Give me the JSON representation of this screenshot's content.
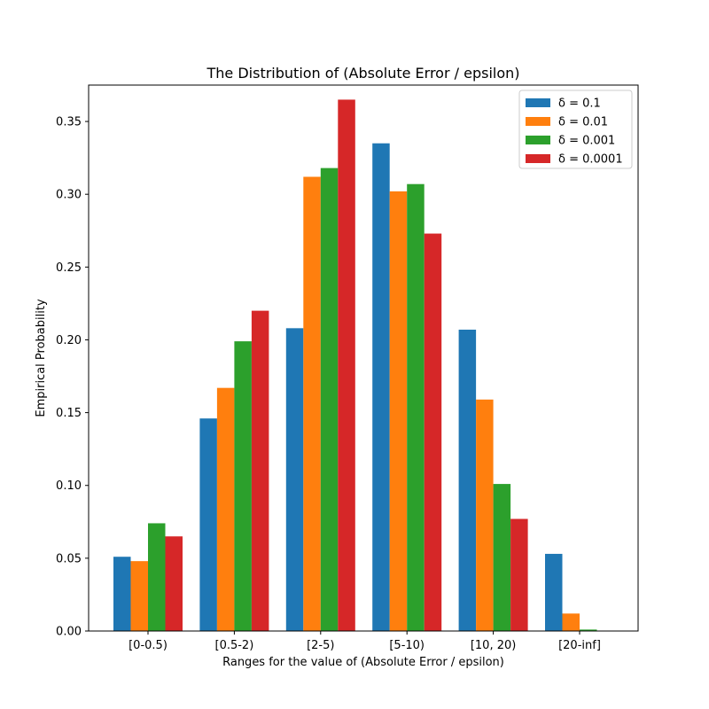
{
  "chart_data": {
    "type": "bar",
    "title": "The Distribution of (Absolute Error / epsilon)",
    "xlabel": "Ranges for the value of (Absolute Error / epsilon)",
    "ylabel": "Empirical Probability",
    "ylim": [
      0,
      0.375
    ],
    "yticks": [
      "0.00",
      "0.05",
      "0.10",
      "0.15",
      "0.20",
      "0.25",
      "0.30",
      "0.35"
    ],
    "ytick_values": [
      0,
      0.05,
      0.1,
      0.15,
      0.2,
      0.25,
      0.3,
      0.35
    ],
    "categories": [
      "[0-0.5)",
      "[0.5-2)",
      "[2-5)",
      "[5-10)",
      "[10, 20)",
      "[20-inf]"
    ],
    "legend_position": "top-right",
    "grid": false,
    "series": [
      {
        "name": "δ = 0.1",
        "color": "#1f77b4",
        "values": [
          0.051,
          0.146,
          0.208,
          0.335,
          0.207,
          0.053
        ]
      },
      {
        "name": "δ = 0.01",
        "color": "#ff7f0e",
        "values": [
          0.048,
          0.167,
          0.312,
          0.302,
          0.159,
          0.012
        ]
      },
      {
        "name": "δ = 0.001",
        "color": "#2ca02c",
        "values": [
          0.074,
          0.199,
          0.318,
          0.307,
          0.101,
          0.001
        ]
      },
      {
        "name": "δ = 0.0001",
        "color": "#d62728",
        "values": [
          0.065,
          0.22,
          0.365,
          0.273,
          0.077,
          0.0
        ]
      }
    ]
  }
}
